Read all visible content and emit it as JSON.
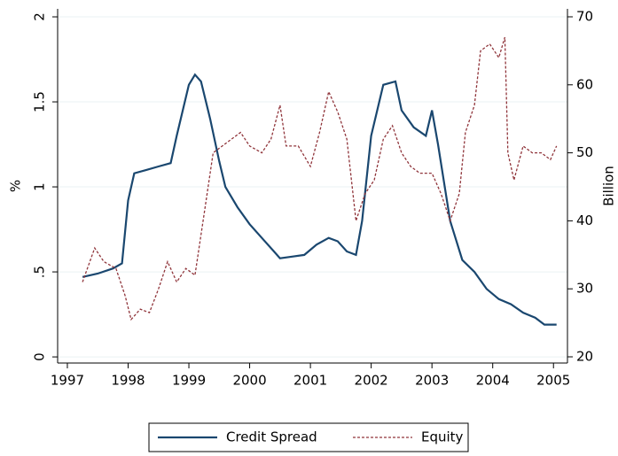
{
  "chart_data": {
    "type": "line",
    "y_label": "%",
    "y2_label": "Billion",
    "xlim": [
      1996.84,
      2005.23
    ],
    "xticks": [
      1997,
      1998,
      1999,
      2000,
      2001,
      2002,
      2003,
      2004,
      2005
    ],
    "ylim": [
      -0.036,
      2.047
    ],
    "yticks": [
      0,
      {
        "value": 0.5,
        "label": ".5"
      },
      1,
      1.5,
      2
    ],
    "y2lim": [
      19.09,
      71.17
    ],
    "y2ticks": [
      20,
      30,
      40,
      50,
      60,
      70
    ],
    "grid": true,
    "legend": "bottom",
    "x": [
      1997.25,
      1997.5,
      1997.75,
      1997.9,
      1998.0,
      1998.1,
      1998.3,
      1998.5,
      1998.7,
      1998.8,
      1999.0,
      1999.1,
      1999.2,
      1999.35,
      1999.5,
      1999.6,
      1999.8,
      2000.0,
      2000.2,
      2000.4,
      2000.5,
      2000.7,
      2000.9,
      2001.1,
      2001.3,
      2001.45,
      2001.6,
      2001.75,
      2001.85,
      2002.0,
      2002.2,
      2002.4,
      2002.5,
      2002.7,
      2002.9,
      2003.0,
      2003.1,
      2003.3,
      2003.5,
      2003.7,
      2003.9,
      2004.1,
      2004.3,
      2004.5,
      2004.7,
      2004.85,
      2005.05
    ],
    "series": [
      {
        "name": "Credit Spread",
        "color": "#1a476f",
        "dash": false,
        "values": [
          0.47,
          0.49,
          0.52,
          0.55,
          0.92,
          1.08,
          1.1,
          1.12,
          1.14,
          1.3,
          1.6,
          1.66,
          1.62,
          1.4,
          1.15,
          1.0,
          0.88,
          0.78,
          0.7,
          0.62,
          0.58,
          0.59,
          0.6,
          0.66,
          0.7,
          0.68,
          0.62,
          0.6,
          0.8,
          1.3,
          1.6,
          1.62,
          1.45,
          1.35,
          1.3,
          1.45,
          1.25,
          0.8,
          0.57,
          0.5,
          0.4,
          0.34,
          0.31,
          0.26,
          0.23,
          0.19,
          0.19
        ]
      },
      {
        "name": "Equity",
        "color": "#90353b",
        "dash": true,
        "axis": "y2",
        "x": [
          1997.25,
          1997.45,
          1997.6,
          1997.8,
          1997.95,
          1998.05,
          1998.2,
          1998.35,
          1998.5,
          1998.65,
          1998.8,
          1998.95,
          1999.1,
          1999.25,
          1999.4,
          1999.55,
          1999.7,
          1999.85,
          2000.0,
          2000.2,
          2000.35,
          2000.5,
          2000.6,
          2000.8,
          2001.0,
          2001.15,
          2001.3,
          2001.45,
          2001.6,
          2001.75,
          2001.9,
          2002.05,
          2002.2,
          2002.35,
          2002.5,
          2002.65,
          2002.8,
          2003.0,
          2003.15,
          2003.3,
          2003.45,
          2003.55,
          2003.7,
          2003.8,
          2003.95,
          2004.1,
          2004.2,
          2004.25,
          2004.35,
          2004.5,
          2004.65,
          2004.8,
          2004.95,
          2005.05
        ],
        "values": [
          31,
          36,
          34,
          33,
          29,
          25.5,
          27,
          26.5,
          30,
          34,
          31,
          33,
          32,
          41,
          50,
          51,
          52,
          53,
          51,
          50,
          52,
          57,
          51,
          51,
          48,
          53,
          59,
          56,
          52,
          40,
          44,
          46,
          52,
          54,
          50,
          48,
          47,
          47,
          44,
          40,
          44,
          53,
          57,
          65,
          66,
          64,
          67,
          50,
          46,
          51,
          50,
          50,
          49,
          51
        ]
      }
    ]
  }
}
